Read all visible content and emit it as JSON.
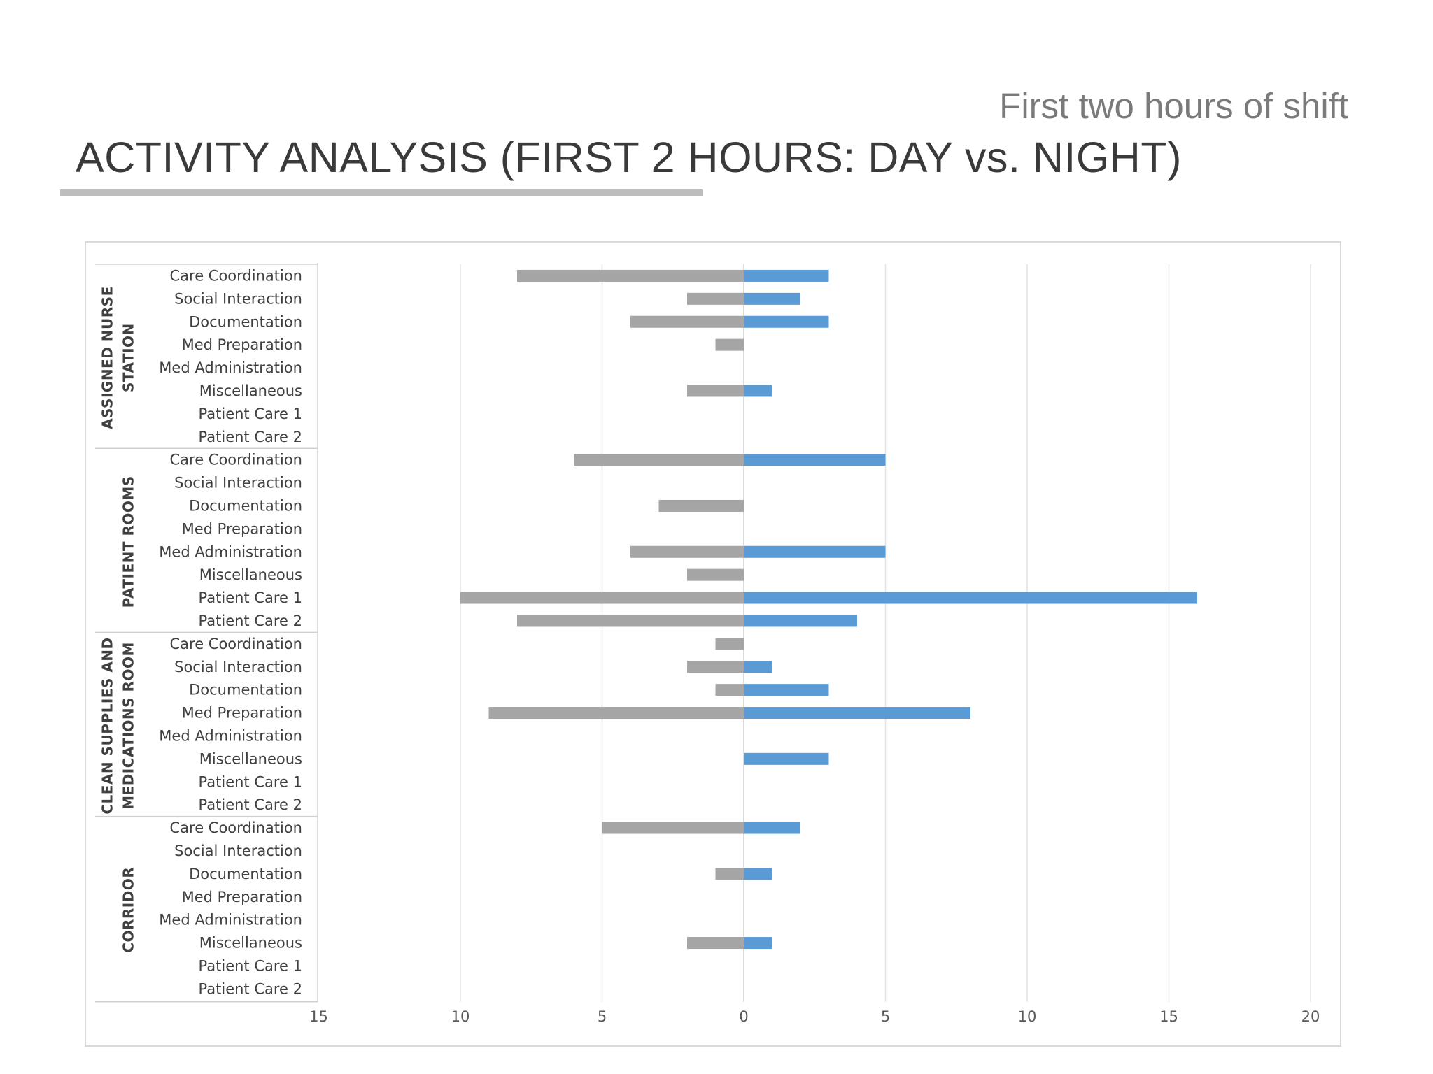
{
  "header": {
    "subtitle": "First two hours of shift",
    "title": "ACTIVITY ANALYSIS (FIRST 2 HOURS: DAY vs. NIGHT)"
  },
  "chart_data": {
    "type": "bar",
    "orientation": "horizontal",
    "layout": "diverging",
    "title": "",
    "xlabel": "",
    "ylabel": "",
    "xlim_left": [
      0,
      15
    ],
    "xlim_right": [
      0,
      20
    ],
    "left_ticks": [
      "15",
      "10",
      "5"
    ],
    "right_ticks": [
      "0",
      "5",
      "10",
      "15",
      "20"
    ],
    "grid": true,
    "legend": "none",
    "colors": {
      "left": "#a5a5a5",
      "right": "#5b9bd5"
    },
    "categories": [
      "Care Coordination",
      "Social Interaction",
      "Documentation",
      "Med Preparation",
      "Med Administration",
      "Miscellaneous",
      "Patient Care 1",
      "Patient Care 2"
    ],
    "groups": [
      {
        "label_lines": [
          "ASSIGNED NURSE",
          "STATION"
        ],
        "left": [
          8,
          2,
          4,
          1,
          0,
          2,
          0,
          0
        ],
        "right": [
          3,
          2,
          3,
          0,
          0,
          1,
          0,
          0
        ]
      },
      {
        "label_lines": [
          "PATIENT ROOMS"
        ],
        "left": [
          6,
          0,
          3,
          0,
          4,
          2,
          10,
          8
        ],
        "right": [
          5,
          0,
          0,
          0,
          5,
          0,
          16,
          4
        ]
      },
      {
        "label_lines": [
          "CLEAN SUPPLIES AND",
          "MEDICATIONS ROOM"
        ],
        "left": [
          1,
          2,
          1,
          9,
          0,
          0,
          0,
          0
        ],
        "right": [
          0,
          1,
          3,
          8,
          0,
          3,
          0,
          0
        ]
      },
      {
        "label_lines": [
          "CORRIDOR"
        ],
        "left": [
          5,
          0,
          1,
          0,
          0,
          2,
          0,
          0
        ],
        "right": [
          2,
          0,
          1,
          0,
          0,
          1,
          0,
          0
        ]
      }
    ]
  }
}
